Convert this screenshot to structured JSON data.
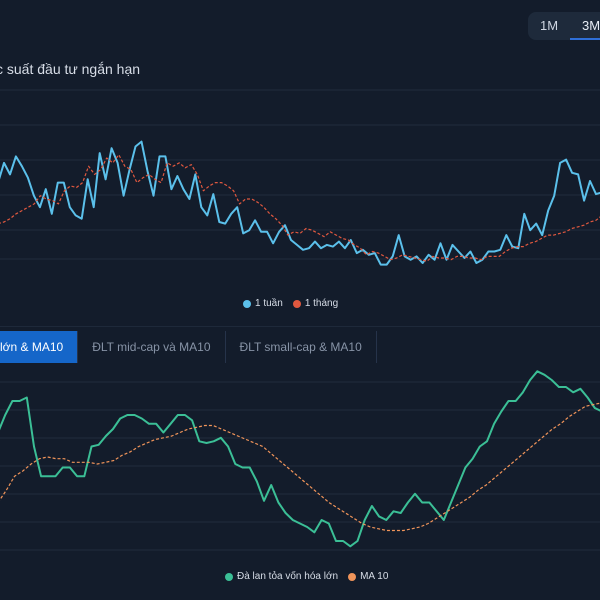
{
  "range_buttons": {
    "btn_1m": "1M",
    "btn_3m": "3M",
    "active": "3M"
  },
  "top_chart": {
    "title": "c suất đầu tư ngắn hạn"
  },
  "tabs": [
    {
      "label": "lớn & MA10",
      "active": true
    },
    {
      "label": "ĐLT mid-cap và MA10",
      "active": false
    },
    {
      "label": "ĐLT small-cap & MA10",
      "active": false
    }
  ],
  "colors": {
    "accent": "#1566c9",
    "blue": "#5bc0eb",
    "red": "#e0583f",
    "green": "#3bbf96",
    "orange": "#f0945a"
  },
  "chart_data": [
    {
      "type": "line",
      "title": "c suất đầu tư ngắn hạn",
      "xlabel": "",
      "ylabel": "",
      "ylim": [
        0,
        100
      ],
      "grid": true,
      "legend_position": "bottom-center",
      "series": [
        {
          "name": "1 tuần",
          "color": "#5bc0eb",
          "style": "solid",
          "values": [
            60,
            72,
            65,
            76,
            70,
            63,
            52,
            45,
            56,
            41,
            60,
            60,
            45,
            40,
            38,
            62,
            45,
            78,
            62,
            81,
            72,
            52,
            68,
            82,
            85,
            67,
            52,
            76,
            76,
            56,
            64,
            56,
            50,
            65,
            45,
            40,
            53,
            36,
            35,
            41,
            45,
            29,
            31,
            37,
            30,
            30,
            23,
            30,
            34,
            25,
            22,
            19,
            20,
            24,
            20,
            22,
            21,
            24,
            20,
            25,
            17,
            19,
            16,
            17,
            10,
            10,
            15,
            28,
            15,
            13,
            15,
            11,
            16,
            13,
            23,
            13,
            22,
            18,
            14,
            18,
            11,
            13,
            18,
            18,
            19,
            28,
            21,
            20,
            41,
            31,
            35,
            28,
            43,
            52,
            72,
            74,
            66,
            65,
            49,
            61,
            53,
            54
          ]
        },
        {
          "name": "1 tháng",
          "color": "#e0583f",
          "style": "dashed",
          "values": [
            35,
            36,
            38,
            41,
            43,
            45,
            47,
            52,
            50,
            49,
            47,
            55,
            58,
            57,
            60,
            70,
            65,
            68,
            75,
            72,
            77,
            70,
            68,
            60,
            63,
            65,
            62,
            60,
            72,
            70,
            72,
            69,
            71,
            65,
            55,
            58,
            60,
            60,
            58,
            55,
            47,
            50,
            50,
            48,
            45,
            41,
            38,
            34,
            28,
            30,
            29,
            32,
            31,
            29,
            27,
            30,
            28,
            26,
            25,
            22,
            20,
            16,
            18,
            17,
            15,
            13,
            14,
            16,
            15,
            14,
            13,
            12,
            15,
            14,
            14,
            13,
            15,
            15,
            14,
            14,
            13,
            15,
            15,
            15,
            18,
            20,
            21,
            21,
            23,
            24,
            26,
            28,
            28,
            29,
            30,
            32,
            33,
            34,
            36,
            37,
            40
          ]
        }
      ]
    },
    {
      "type": "line",
      "xlabel": "",
      "ylabel": "",
      "ylim": [
        0,
        100
      ],
      "grid": true,
      "legend_position": "bottom-center",
      "series": [
        {
          "name": "Đà lan tỏa vốn hóa lớn",
          "color": "#3bbf96",
          "style": "solid",
          "values": [
            70,
            80,
            88,
            88,
            90,
            62,
            45,
            45,
            45,
            50,
            50,
            45,
            45,
            62,
            63,
            68,
            72,
            78,
            80,
            80,
            78,
            75,
            75,
            70,
            75,
            80,
            80,
            77,
            65,
            64,
            65,
            67,
            62,
            52,
            50,
            50,
            42,
            31,
            40,
            30,
            24,
            20,
            18,
            16,
            13,
            20,
            18,
            8,
            8,
            5,
            8,
            20,
            28,
            22,
            20,
            25,
            24,
            30,
            35,
            30,
            30,
            25,
            20,
            30,
            40,
            50,
            55,
            62,
            65,
            75,
            82,
            88,
            88,
            93,
            100,
            105,
            103,
            100,
            96,
            96,
            93,
            95,
            90,
            84,
            82
          ]
        },
        {
          "name": "MA 10",
          "color": "#f0945a",
          "style": "dashed",
          "values": [
            30,
            37,
            45,
            48,
            52,
            55,
            56,
            55,
            55,
            53,
            53,
            53,
            52,
            53,
            54,
            57,
            59,
            62,
            64,
            66,
            67,
            68,
            70,
            72,
            73,
            74,
            74,
            72,
            70,
            68,
            66,
            64,
            62,
            58,
            54,
            50,
            46,
            42,
            38,
            34,
            30,
            27,
            24,
            21,
            18,
            16,
            15,
            14,
            14,
            14,
            15,
            16,
            18,
            21,
            24,
            27,
            30,
            33,
            37,
            40,
            44,
            48,
            52,
            56,
            60,
            64,
            68,
            72,
            75,
            79,
            82,
            85,
            86,
            87
          ]
        }
      ]
    }
  ]
}
